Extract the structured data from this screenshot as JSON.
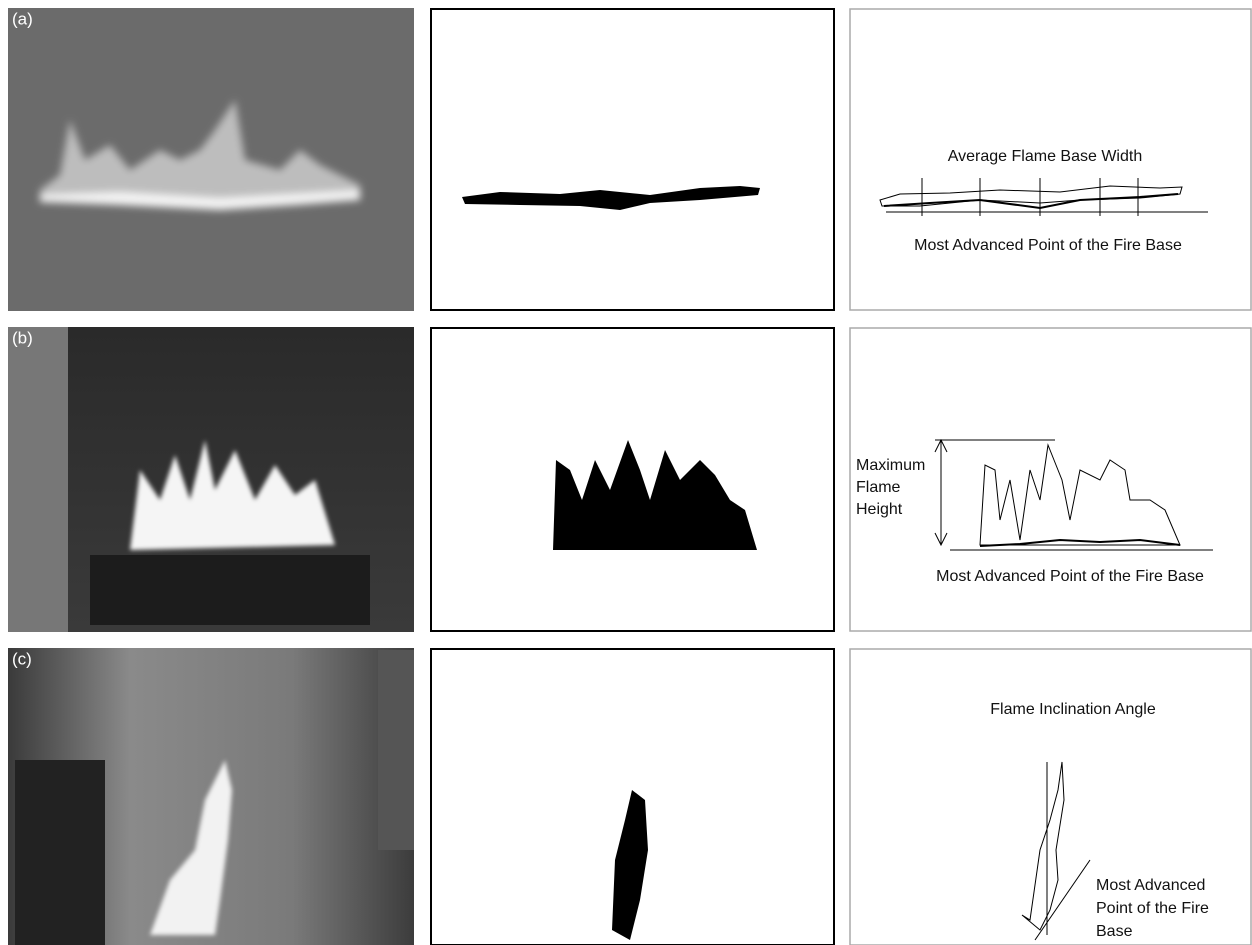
{
  "rows": [
    {
      "label": "(a)",
      "annotations": {
        "top": "Average Flame Base  Width",
        "bottom": "Most Advanced Point of the Fire Base"
      }
    },
    {
      "label": "(b)",
      "annotations": {
        "side": [
          "Maximum",
          "Flame",
          "Height"
        ],
        "bottom": "Most Advanced Point of the Fire Base"
      }
    },
    {
      "label": "(c)",
      "annotations": {
        "top": "Flame Inclination Angle",
        "side": [
          "Most Advanced",
          "Point of the Fire",
          "Base"
        ]
      }
    }
  ]
}
